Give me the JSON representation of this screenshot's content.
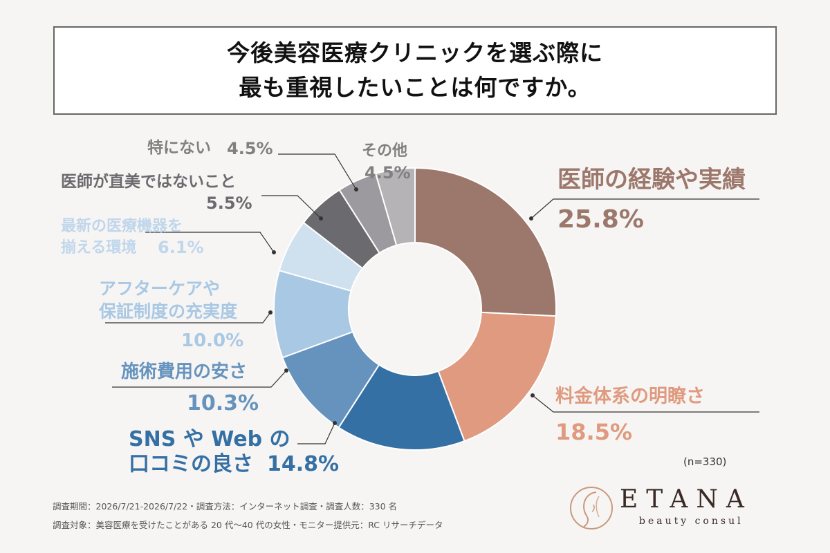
{
  "title": {
    "line1": "今後美容医療クリニックを選ぶ際に",
    "line2": "最も重視したいことは何ですか。"
  },
  "chart_data": {
    "type": "pie",
    "start_angle_deg": 0,
    "categories": [
      "医師の経験や実績",
      "料金体系の明瞭さ",
      "SNS や Web の口コミの良さ",
      "施術費用の安さ",
      "アフターケアや保証制度の充実度",
      "最新の医療機器を揃える環境",
      "医師が直美ではないこと",
      "特にない",
      "その他"
    ],
    "values": [
      25.8,
      18.5,
      14.8,
      10.3,
      10.0,
      6.1,
      5.5,
      4.5,
      4.5
    ],
    "colors": [
      "#9c776b",
      "#df9a7f",
      "#3570a5",
      "#6593be",
      "#a9c8e4",
      "#cfe0ef",
      "#6b6a6e",
      "#9c9a9e",
      "#b5b3b6"
    ],
    "label_colors": [
      "#9c776b",
      "#df9a7f",
      "#3570a5",
      "#6593be",
      "#a9c8e4",
      "#c0d6eb",
      "#6b6a6e",
      "#808080",
      "#808080"
    ]
  },
  "labels": {
    "doctor": {
      "name": "医師の経験や実績",
      "pct": "25.8%"
    },
    "fee": {
      "name": "料金体系の明瞭さ",
      "pct": "18.5%"
    },
    "sns": {
      "name1": "SNS や Web の",
      "name2": "口コミの良さ",
      "pct": "14.8%"
    },
    "cost": {
      "name": "施術費用の安さ",
      "pct": "10.3%"
    },
    "aftercare": {
      "name1": "アフターケアや",
      "name2": "保証制度の充実度",
      "pct": "10.0%"
    },
    "equipment": {
      "name1": "最新の医療機器を",
      "name2": "揃える環境",
      "pct": "6.1%"
    },
    "chokubi": {
      "name": "医師が直美ではないこと",
      "pct": "5.5%"
    },
    "none": {
      "name": "特にない",
      "pct": "4.5%"
    },
    "other": {
      "name": "その他",
      "pct": "4.5%"
    }
  },
  "sample_note": "(n=330)",
  "footer": {
    "line1": "調査期間：2026/7/21-2026/7/22・調査方法：インターネット調査・調査人数：330 名",
    "line2": "調査対象：美容医療を受けたことがある 20 代〜40 代の女性・モニター提供元：RC リサーチデータ"
  },
  "logo": {
    "name": "ETANA",
    "tagline": "beauty consul"
  }
}
